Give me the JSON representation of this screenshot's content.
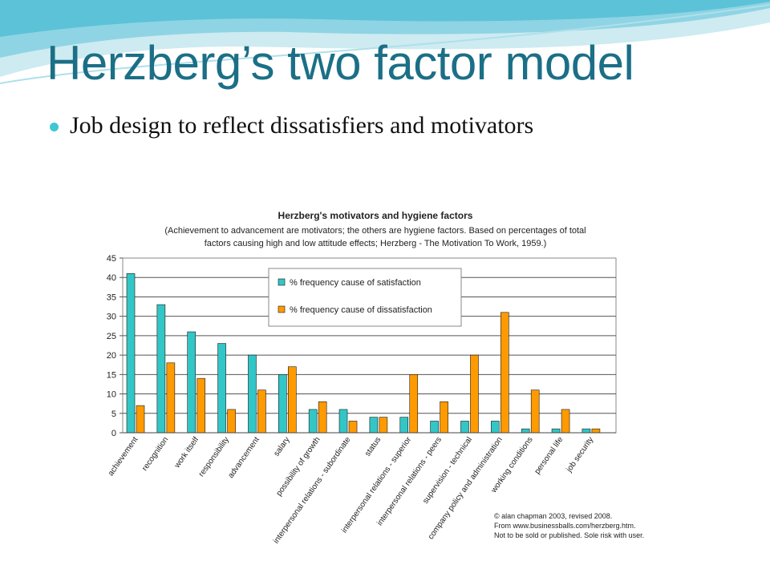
{
  "slide": {
    "title": "Herzberg’s two factor model",
    "bullet": "Job design to reflect dissatisfiers and motivators"
  },
  "colors": {
    "title": "#1b6f86",
    "bullet": "#3ec7d3",
    "satisfaction": "#33c6c6",
    "dissatisfaction": "#ff9a00"
  },
  "credit": {
    "line1": "© alan chapman 2003, revised 2008.",
    "line2": "From www.businessballs.com/herzberg.htm.",
    "line3": "Not to be sold or published. Sole risk with user."
  },
  "chart_data": {
    "type": "bar",
    "title": "Herzberg's motivators and hygiene factors",
    "subtitle": [
      "(Achievement to advancement are motivators; the others are hygiene factors. Based on percentages of total",
      "factors causing high and low attitude effects; Herzberg - The Motivation To Work, 1959.)"
    ],
    "categories": [
      "achievement",
      "recognition",
      "work itself",
      "responsibility",
      "advancement",
      "salary",
      "possibility of growth",
      "interpersonal relations - subordinate",
      "status",
      "interpersonal relations - superior",
      "interpersonal relations - peers",
      "supervision - technical",
      "company policy and administration",
      "working conditions",
      "personal life",
      "job security"
    ],
    "series": [
      {
        "name": "% frequency cause of satisfaction",
        "values": [
          41,
          33,
          26,
          23,
          20,
          15,
          6,
          6,
          4,
          4,
          3,
          3,
          3,
          1,
          1,
          1
        ]
      },
      {
        "name": "% frequency cause of dissatisfaction",
        "values": [
          7,
          18,
          14,
          6,
          11,
          17,
          8,
          3,
          4,
          15,
          8,
          20,
          31,
          11,
          6,
          1
        ]
      }
    ],
    "ylim": [
      0,
      45
    ],
    "yticks": [
      0,
      5,
      10,
      15,
      20,
      25,
      30,
      35,
      40,
      45
    ],
    "grid": true,
    "legend": "top-center"
  }
}
